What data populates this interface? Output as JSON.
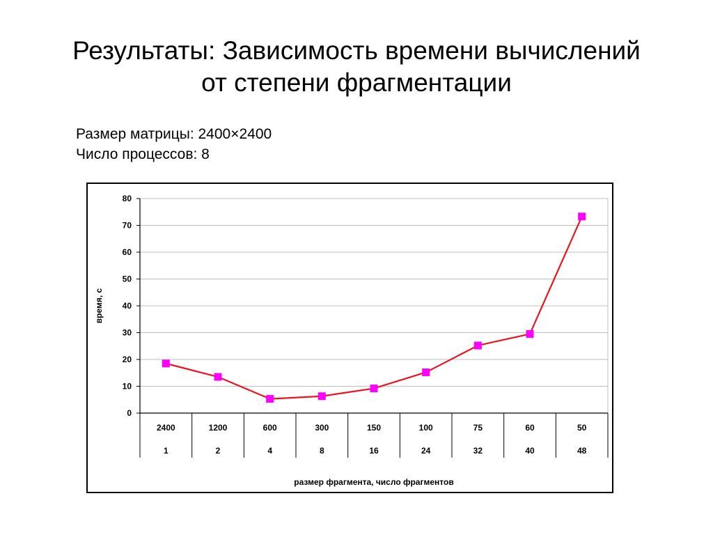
{
  "slide": {
    "title_line1": "Результаты: Зависимость времени вычислений",
    "title_line2": "от степени фрагментации",
    "info_line1": "Размер матрицы: 2400×2400",
    "info_line2": "Число процессов: 8"
  },
  "colors": {
    "line": "#e8141e",
    "marker": "#ff00ff",
    "grid": "#bfbfbf"
  },
  "chart_data": {
    "type": "line",
    "title": "",
    "xlabel": "размер фрагмента, число фрагментов",
    "ylabel": "время, с",
    "ylim": [
      0,
      80
    ],
    "y_ticks": [
      0,
      10,
      20,
      30,
      40,
      50,
      60,
      70,
      80
    ],
    "grid": true,
    "legend": "none",
    "categories_row1": [
      "2400",
      "1200",
      "600",
      "300",
      "150",
      "100",
      "75",
      "60",
      "50"
    ],
    "categories_row2": [
      "1",
      "2",
      "4",
      "8",
      "16",
      "24",
      "32",
      "40",
      "48"
    ],
    "series": [
      {
        "values": [
          18.5,
          13.5,
          5.3,
          6.3,
          9.2,
          15.2,
          25.2,
          29.5,
          73.3
        ]
      }
    ]
  }
}
